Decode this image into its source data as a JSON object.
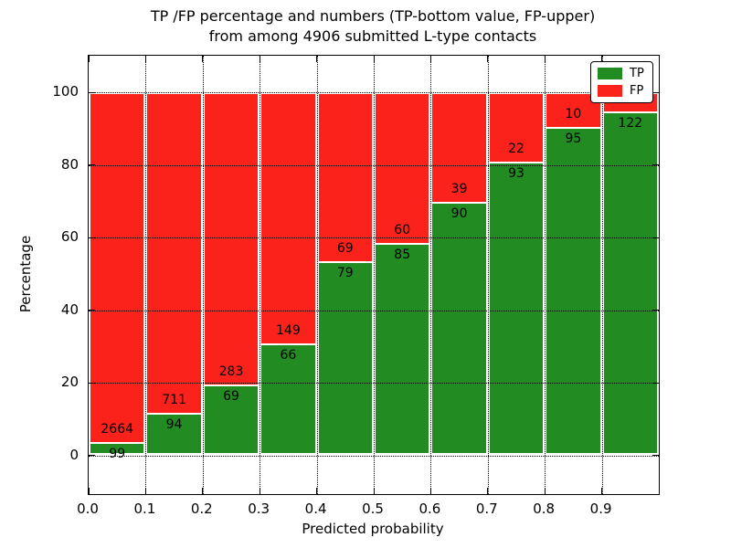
{
  "title": {
    "line1": "TP /FP percentage and numbers (TP-bottom value, FP-upper)",
    "line2": "from among 4906 submitted L-type contacts"
  },
  "colors": {
    "tp_green": "#228b22",
    "fp_red": "#fb221b",
    "grid": "#000000",
    "bar_edge": "#ffffff"
  },
  "chart_data": {
    "type": "bar",
    "stacked": true,
    "title": "TP /FP percentage and numbers (TP-bottom value, FP-upper) from among 4906 submitted L-type contacts",
    "xlabel": "Predicted probability",
    "ylabel": "Percentage",
    "xlim": [
      0.0,
      1.0
    ],
    "ylim": [
      -10.7,
      110.1
    ],
    "grid": "dotted",
    "x_tick_labels": [
      "0.0",
      "0.1",
      "0.2",
      "0.3",
      "0.4",
      "0.5",
      "0.6",
      "0.7",
      "0.8",
      "0.9"
    ],
    "y_ticks": [
      0,
      20,
      40,
      60,
      80,
      100
    ],
    "legend": {
      "position": "upper right",
      "entries": [
        {
          "label": "TP",
          "color": "#228b22"
        },
        {
          "label": "FP",
          "color": "#fb221b"
        }
      ]
    },
    "series_note": "Each bar spans 0.1 of predicted probability; green TP bottom + red FP top stack to 100%. Numbers printed at the TP/FP boundary are counts.",
    "bars": [
      {
        "bin": "0.0-0.1",
        "tp_count": 99,
        "fp_count": 2664,
        "tp_percent": 3.6
      },
      {
        "bin": "0.1-0.2",
        "tp_count": 94,
        "fp_count": 711,
        "tp_percent": 11.7
      },
      {
        "bin": "0.2-0.3",
        "tp_count": 69,
        "fp_count": 283,
        "tp_percent": 19.6
      },
      {
        "bin": "0.3-0.4",
        "tp_count": 66,
        "fp_count": 149,
        "tp_percent": 30.7
      },
      {
        "bin": "0.4-0.5",
        "tp_count": 79,
        "fp_count": 69,
        "tp_percent": 53.4
      },
      {
        "bin": "0.5-0.6",
        "tp_count": 85,
        "fp_count": 60,
        "tp_percent": 58.6
      },
      {
        "bin": "0.6-0.7",
        "tp_count": 90,
        "fp_count": 39,
        "tp_percent": 69.8
      },
      {
        "bin": "0.7-0.8",
        "tp_count": 93,
        "fp_count": 22,
        "tp_percent": 80.9
      },
      {
        "bin": "0.8-0.9",
        "tp_count": 95,
        "fp_count": 10,
        "tp_percent": 90.5
      },
      {
        "bin": "0.9-1.0",
        "tp_count": 122,
        "fp_count": null,
        "tp_percent": 94.6,
        "fp_label_hidden_behind_legend": true
      }
    ]
  }
}
